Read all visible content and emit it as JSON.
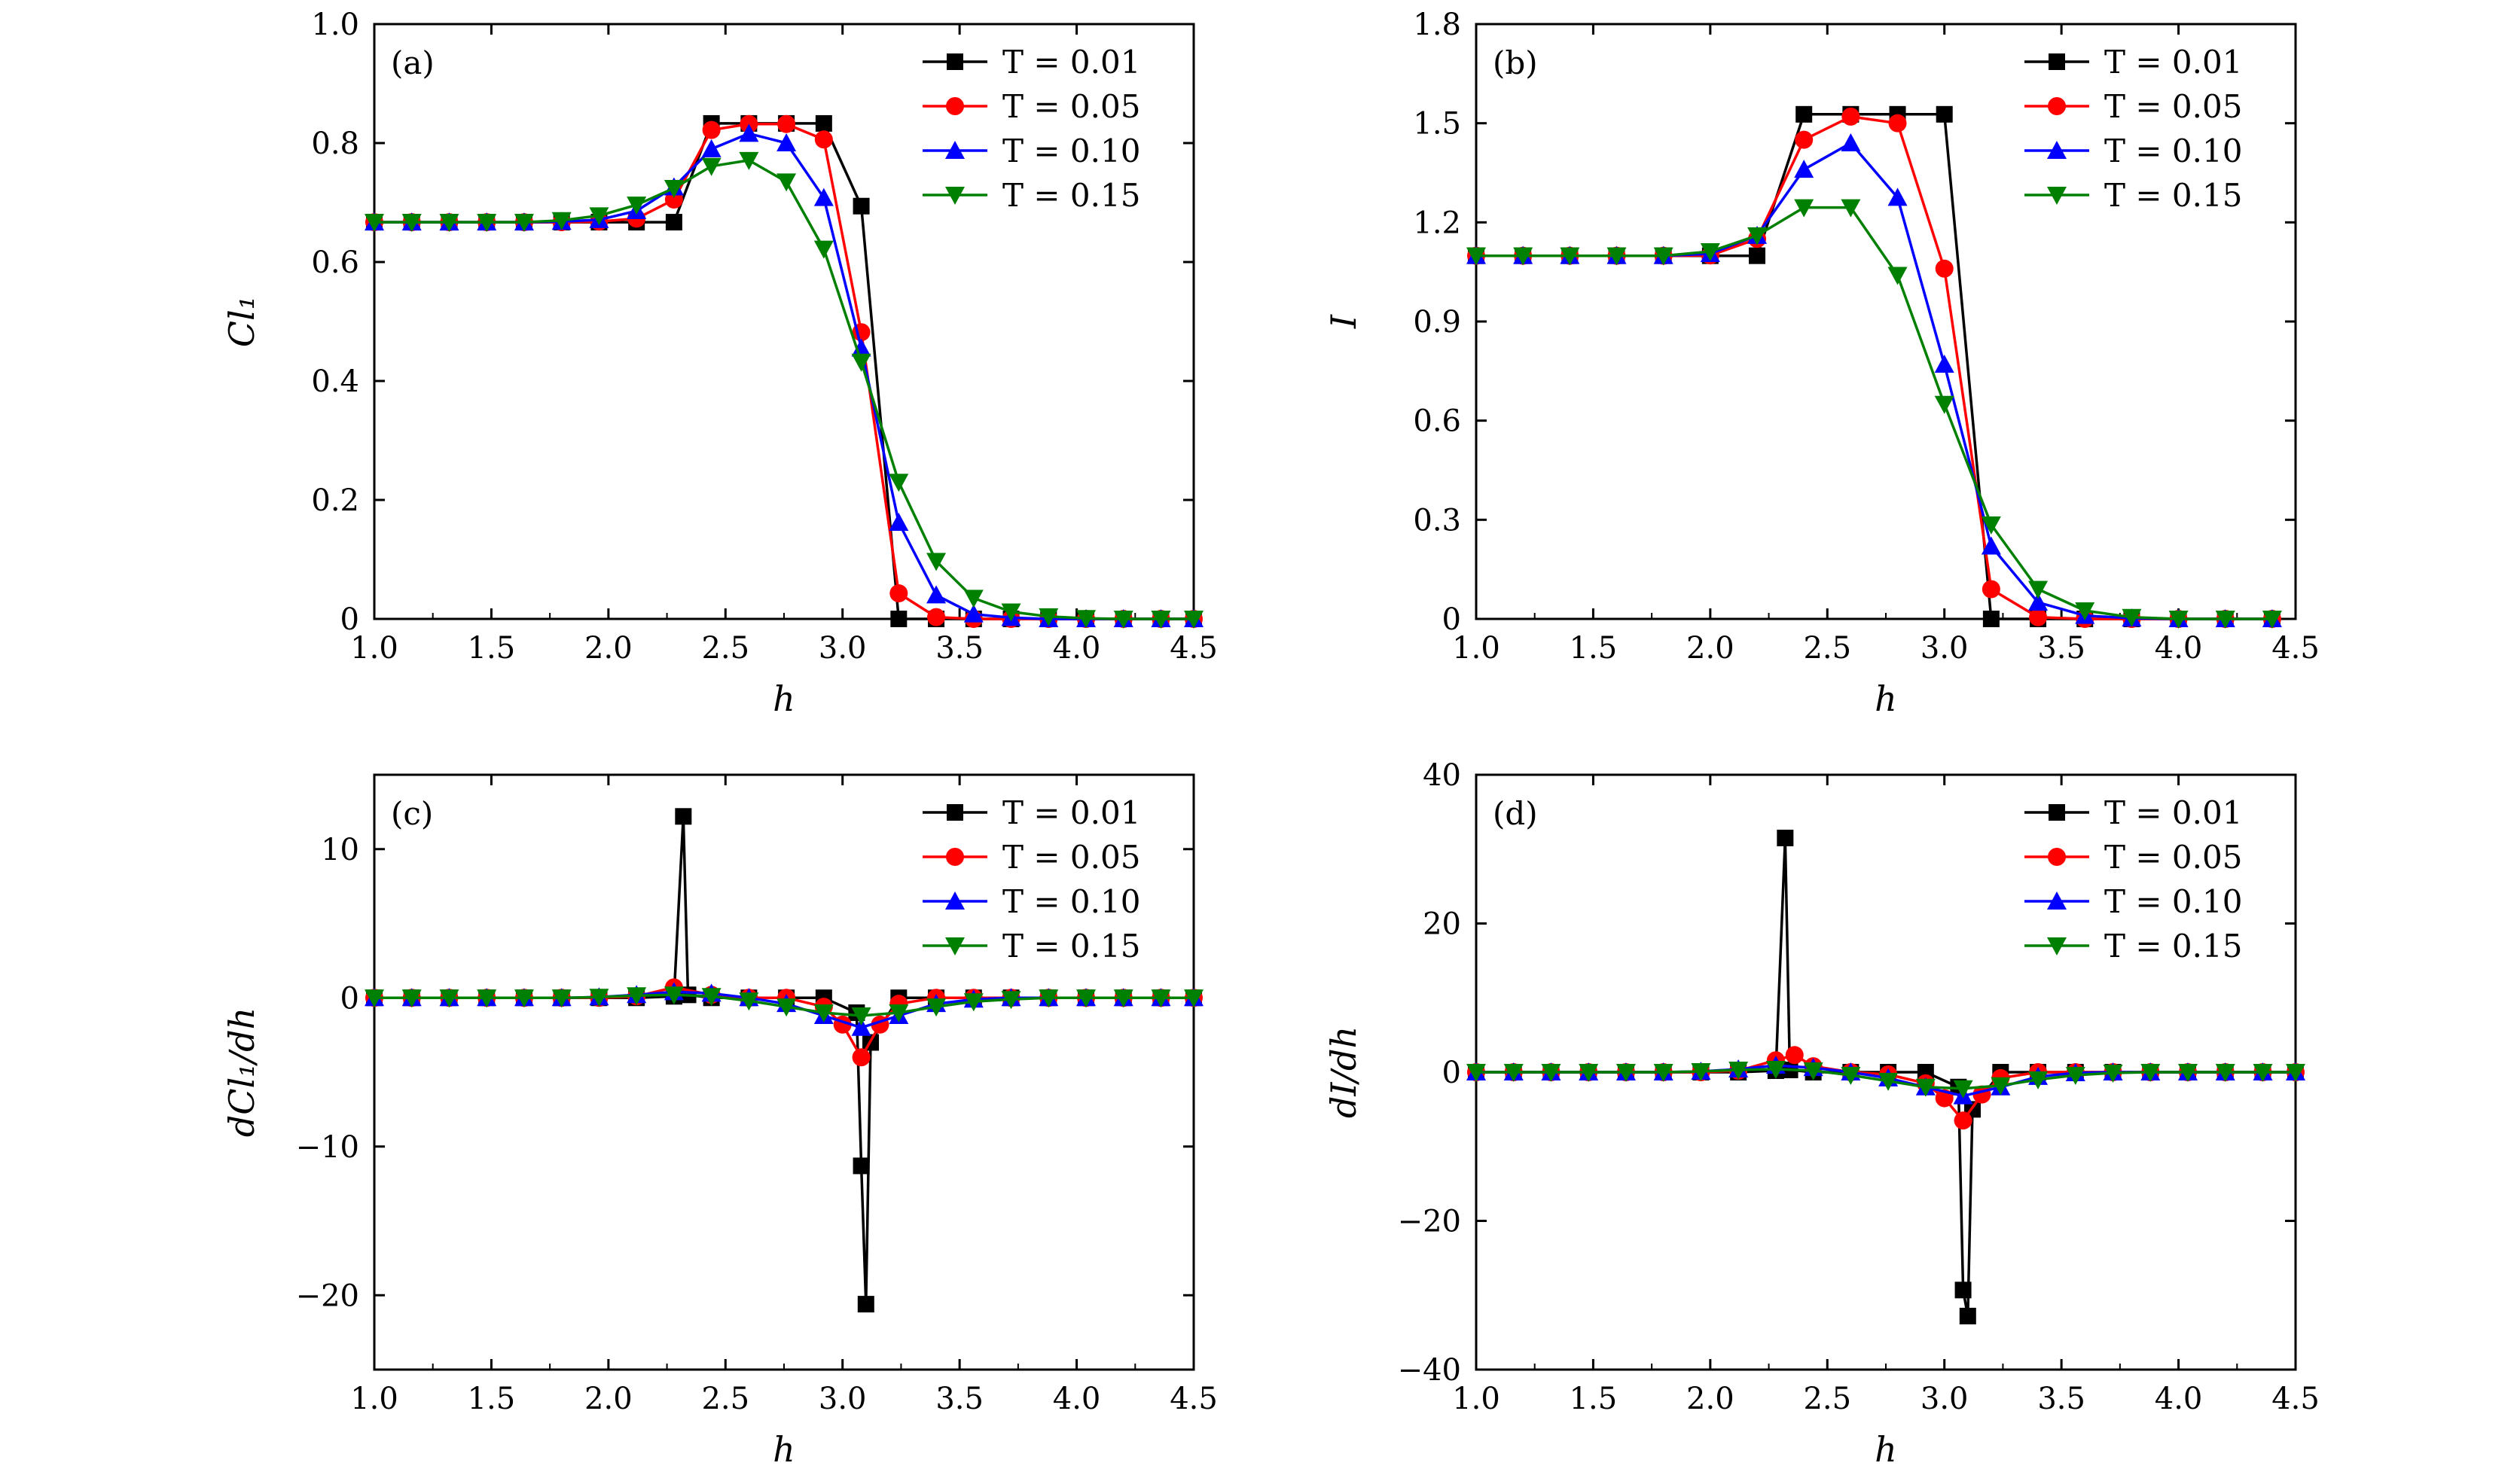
{
  "series_legend": [
    "T = 0.01",
    "T = 0.05",
    "T = 0.10",
    "T = 0.15"
  ],
  "series_colors": [
    "#000000",
    "#ff0000",
    "#0000ff",
    "#008000"
  ],
  "series_markers": [
    "square",
    "circle",
    "triangle-up",
    "triangle-down"
  ],
  "chart_data": [
    {
      "type": "line",
      "panel_label": "(a)",
      "xlabel": "h",
      "ylabel": "Cl₁",
      "xlim": [
        1.0,
        4.5
      ],
      "ylim": [
        0,
        1.0
      ],
      "xticks": [
        "1.0",
        "1.5",
        "2.0",
        "2.5",
        "3.0",
        "3.5",
        "4.0",
        "4.5"
      ],
      "yticks": [
        "0",
        "0.2",
        "0.4",
        "0.6",
        "0.8",
        "1.0"
      ],
      "legend_position": "top-right",
      "series": [
        {
          "name": "T = 0.01",
          "x": [
            1.0,
            1.16,
            1.32,
            1.48,
            1.64,
            1.8,
            1.96,
            2.12,
            2.28,
            2.44,
            2.6,
            2.76,
            2.92,
            3.08,
            3.24,
            3.4,
            3.56,
            3.72,
            3.88,
            4.04,
            4.2,
            4.36,
            4.5
          ],
          "y": [
            0.667,
            0.667,
            0.667,
            0.667,
            0.667,
            0.667,
            0.667,
            0.667,
            0.667,
            0.833,
            0.833,
            0.833,
            0.833,
            0.694,
            0.0,
            0.0,
            0.0,
            0.0,
            0.0,
            0.0,
            0.0,
            0.0,
            0.0
          ]
        },
        {
          "name": "T = 0.05",
          "x": [
            1.0,
            1.16,
            1.32,
            1.48,
            1.64,
            1.8,
            1.96,
            2.12,
            2.28,
            2.44,
            2.6,
            2.76,
            2.92,
            3.08,
            3.24,
            3.4,
            3.56,
            3.72,
            3.88,
            4.04,
            4.2,
            4.36,
            4.5
          ],
          "y": [
            0.667,
            0.667,
            0.667,
            0.667,
            0.667,
            0.667,
            0.668,
            0.673,
            0.705,
            0.822,
            0.832,
            0.832,
            0.806,
            0.482,
            0.043,
            0.003,
            0.0,
            0.0,
            0.0,
            0.0,
            0.0,
            0.0,
            0.0
          ]
        },
        {
          "name": "T = 0.10",
          "x": [
            1.0,
            1.16,
            1.32,
            1.48,
            1.64,
            1.8,
            1.96,
            2.12,
            2.28,
            2.44,
            2.6,
            2.76,
            2.92,
            3.08,
            3.24,
            3.4,
            3.56,
            3.72,
            3.88,
            4.04,
            4.2,
            4.36,
            4.5
          ],
          "y": [
            0.667,
            0.667,
            0.667,
            0.667,
            0.667,
            0.668,
            0.671,
            0.686,
            0.726,
            0.79,
            0.816,
            0.8,
            0.708,
            0.455,
            0.162,
            0.04,
            0.008,
            0.002,
            0.0,
            0.0,
            0.0,
            0.0,
            0.0
          ]
        },
        {
          "name": "T = 0.15",
          "x": [
            1.0,
            1.16,
            1.32,
            1.48,
            1.64,
            1.8,
            1.96,
            2.12,
            2.28,
            2.44,
            2.6,
            2.76,
            2.92,
            3.08,
            3.24,
            3.4,
            3.56,
            3.72,
            3.88,
            4.04,
            4.2,
            4.36,
            4.5
          ],
          "y": [
            0.667,
            0.667,
            0.667,
            0.667,
            0.667,
            0.67,
            0.678,
            0.696,
            0.724,
            0.761,
            0.771,
            0.735,
            0.622,
            0.432,
            0.23,
            0.097,
            0.035,
            0.012,
            0.004,
            0.001,
            0.0,
            0.0,
            0.0
          ]
        }
      ]
    },
    {
      "type": "line",
      "panel_label": "(b)",
      "xlabel": "h",
      "ylabel": "I",
      "xlim": [
        1.0,
        4.5
      ],
      "ylim": [
        0,
        1.8
      ],
      "xticks": [
        "1.0",
        "1.5",
        "2.0",
        "2.5",
        "3.0",
        "3.5",
        "4.0",
        "4.5"
      ],
      "yticks": [
        "0",
        "0.3",
        "0.6",
        "0.9",
        "1.2",
        "1.5",
        "1.8"
      ],
      "legend_position": "top-right",
      "series": [
        {
          "name": "T = 0.01",
          "x": [
            1.0,
            1.2,
            1.4,
            1.6,
            1.8,
            2.0,
            2.2,
            2.4,
            2.6,
            2.8,
            3.0,
            3.2,
            3.4,
            3.6,
            3.8,
            4.0,
            4.2,
            4.4
          ],
          "y": [
            1.099,
            1.099,
            1.099,
            1.099,
            1.099,
            1.099,
            1.099,
            1.527,
            1.527,
            1.527,
            1.527,
            0.0,
            0.0,
            0.0,
            0.0,
            0.0,
            0.0,
            0.0
          ]
        },
        {
          "name": "T = 0.05",
          "x": [
            1.0,
            1.2,
            1.4,
            1.6,
            1.8,
            2.0,
            2.2,
            2.4,
            2.6,
            2.8,
            3.0,
            3.2,
            3.4,
            3.6,
            3.8,
            4.0,
            4.2,
            4.4
          ],
          "y": [
            1.099,
            1.099,
            1.099,
            1.099,
            1.099,
            1.1,
            1.15,
            1.45,
            1.52,
            1.5,
            1.06,
            0.09,
            0.005,
            0.0,
            0.0,
            0.0,
            0.0,
            0.0
          ]
        },
        {
          "name": "T = 0.10",
          "x": [
            1.0,
            1.2,
            1.4,
            1.6,
            1.8,
            2.0,
            2.2,
            2.4,
            2.6,
            2.8,
            3.0,
            3.2,
            3.4,
            3.6,
            3.8,
            4.0,
            4.2,
            4.4
          ],
          "y": [
            1.099,
            1.099,
            1.099,
            1.099,
            1.099,
            1.105,
            1.16,
            1.36,
            1.44,
            1.275,
            0.77,
            0.22,
            0.05,
            0.01,
            0.002,
            0.0,
            0.0,
            0.0
          ]
        },
        {
          "name": "T = 0.15",
          "x": [
            1.0,
            1.2,
            1.4,
            1.6,
            1.8,
            2.0,
            2.2,
            2.4,
            2.6,
            2.8,
            3.0,
            3.2,
            3.4,
            3.6,
            3.8,
            4.0,
            4.2,
            4.4
          ],
          "y": [
            1.099,
            1.099,
            1.099,
            1.099,
            1.099,
            1.112,
            1.16,
            1.245,
            1.245,
            1.04,
            0.65,
            0.285,
            0.09,
            0.025,
            0.005,
            0.0,
            0.0,
            0.0
          ]
        }
      ]
    },
    {
      "type": "line",
      "panel_label": "(c)",
      "xlabel": "h",
      "ylabel": "dCl₁/dh",
      "xlim": [
        1.0,
        4.5
      ],
      "ylim": [
        -25,
        15
      ],
      "xticks": [
        "1.0",
        "1.5",
        "2.0",
        "2.5",
        "3.0",
        "3.5",
        "4.0",
        "4.5"
      ],
      "yticks": [
        "−20",
        "−10",
        "0",
        "10"
      ],
      "ytick_values": [
        -20,
        -10,
        0,
        10
      ],
      "legend_position": "top-right",
      "series": [
        {
          "name": "T = 0.01",
          "x": [
            1.0,
            1.16,
            1.32,
            1.48,
            1.64,
            1.8,
            1.96,
            2.12,
            2.28,
            2.32,
            2.34,
            2.44,
            2.6,
            2.76,
            2.92,
            3.06,
            3.08,
            3.1,
            3.12,
            3.24,
            3.4,
            3.56,
            3.72,
            3.88,
            4.04,
            4.2,
            4.36,
            4.5
          ],
          "y": [
            0,
            0,
            0,
            0,
            0,
            0,
            0,
            0,
            0.1,
            12.2,
            0.2,
            0,
            0,
            0,
            0,
            -1.0,
            -11.3,
            -20.6,
            -3.0,
            0,
            0,
            0,
            0,
            0,
            0,
            0,
            0,
            0
          ]
        },
        {
          "name": "T = 0.05",
          "x": [
            1.0,
            1.16,
            1.32,
            1.48,
            1.64,
            1.8,
            1.96,
            2.12,
            2.28,
            2.44,
            2.6,
            2.76,
            2.92,
            3.0,
            3.08,
            3.16,
            3.24,
            3.4,
            3.56,
            3.72,
            3.88,
            4.04,
            4.2,
            4.36,
            4.5
          ],
          "y": [
            0,
            0,
            0,
            0,
            0,
            0,
            0,
            0.1,
            0.7,
            0.2,
            0,
            0,
            -0.6,
            -1.8,
            -4.0,
            -1.8,
            -0.4,
            0,
            0,
            0,
            0,
            0,
            0,
            0,
            0
          ]
        },
        {
          "name": "T = 0.10",
          "x": [
            1.0,
            1.16,
            1.32,
            1.48,
            1.64,
            1.8,
            1.96,
            2.12,
            2.28,
            2.44,
            2.6,
            2.76,
            2.92,
            3.08,
            3.24,
            3.4,
            3.56,
            3.72,
            3.88,
            4.04,
            4.2,
            4.36,
            4.5
          ],
          "y": [
            0,
            0,
            0,
            0,
            0,
            0,
            0.05,
            0.2,
            0.4,
            0.3,
            0,
            -0.4,
            -1.2,
            -2.0,
            -1.2,
            -0.4,
            -0.1,
            0,
            0,
            0,
            0,
            0,
            0
          ]
        },
        {
          "name": "T = 0.15",
          "x": [
            1.0,
            1.16,
            1.32,
            1.48,
            1.64,
            1.8,
            1.96,
            2.12,
            2.28,
            2.44,
            2.6,
            2.76,
            2.92,
            3.08,
            3.24,
            3.4,
            3.56,
            3.72,
            3.88,
            4.04,
            4.2,
            4.36,
            4.5
          ],
          "y": [
            0,
            0,
            0,
            0,
            0,
            0,
            0.05,
            0.15,
            0.2,
            0.1,
            -0.2,
            -0.6,
            -1.0,
            -1.2,
            -1.0,
            -0.6,
            -0.25,
            -0.1,
            0,
            0,
            0,
            0,
            0
          ]
        }
      ]
    },
    {
      "type": "line",
      "panel_label": "(d)",
      "xlabel": "h",
      "ylabel": "dI/dh",
      "xlim": [
        1.0,
        4.5
      ],
      "ylim": [
        -40,
        40
      ],
      "xticks": [
        "1.0",
        "1.5",
        "2.0",
        "2.5",
        "3.0",
        "3.5",
        "4.0",
        "4.5"
      ],
      "yticks": [
        "−40",
        "−20",
        "0",
        "20",
        "40"
      ],
      "ytick_values": [
        -40,
        -20,
        0,
        20,
        40
      ],
      "legend_position": "top-right",
      "series": [
        {
          "name": "T = 0.01",
          "x": [
            1.0,
            1.16,
            1.32,
            1.48,
            1.64,
            1.8,
            1.96,
            2.12,
            2.28,
            2.32,
            2.34,
            2.44,
            2.6,
            2.76,
            2.92,
            3.06,
            3.08,
            3.1,
            3.12,
            3.24,
            3.4,
            3.56,
            3.72,
            3.88,
            4.04,
            4.2,
            4.36,
            4.5
          ],
          "y": [
            0,
            0,
            0,
            0,
            0,
            0,
            0,
            0,
            0.2,
            31.5,
            0.3,
            0,
            0,
            0,
            0,
            -2.0,
            -29.3,
            -32.8,
            -5.0,
            0,
            0,
            0,
            0,
            0,
            0,
            0,
            0,
            0
          ]
        },
        {
          "name": "T = 0.05",
          "x": [
            1.0,
            1.16,
            1.32,
            1.48,
            1.64,
            1.8,
            1.96,
            2.12,
            2.28,
            2.36,
            2.44,
            2.6,
            2.76,
            2.92,
            3.0,
            3.08,
            3.16,
            3.24,
            3.4,
            3.56,
            3.72,
            3.88,
            4.04,
            4.2,
            4.36,
            4.5
          ],
          "y": [
            0,
            0,
            0,
            0,
            0,
            0,
            0,
            0.2,
            1.6,
            2.3,
            0.8,
            0,
            -0.3,
            -1.5,
            -3.5,
            -6.5,
            -3.0,
            -0.8,
            0,
            0,
            0,
            0,
            0,
            0,
            0,
            0
          ]
        },
        {
          "name": "T = 0.10",
          "x": [
            1.0,
            1.16,
            1.32,
            1.48,
            1.64,
            1.8,
            1.96,
            2.12,
            2.28,
            2.44,
            2.6,
            2.76,
            2.92,
            3.08,
            3.24,
            3.4,
            3.56,
            3.72,
            3.88,
            4.04,
            4.2,
            4.36,
            4.5
          ],
          "y": [
            0,
            0,
            0,
            0,
            0,
            0,
            0.1,
            0.4,
            0.9,
            0.6,
            0,
            -0.8,
            -2.0,
            -3.2,
            -2.0,
            -0.6,
            -0.1,
            0,
            0,
            0,
            0,
            0,
            0
          ]
        },
        {
          "name": "T = 0.15",
          "x": [
            1.0,
            1.16,
            1.32,
            1.48,
            1.64,
            1.8,
            1.96,
            2.12,
            2.28,
            2.44,
            2.6,
            2.76,
            2.92,
            3.08,
            3.24,
            3.4,
            3.56,
            3.72,
            3.88,
            4.04,
            4.2,
            4.36,
            4.5
          ],
          "y": [
            0,
            0,
            0,
            0,
            0,
            0,
            0.1,
            0.3,
            0.4,
            0.2,
            -0.4,
            -1.2,
            -2.0,
            -2.2,
            -1.8,
            -1.0,
            -0.4,
            -0.1,
            0,
            0,
            0,
            0,
            0
          ]
        }
      ]
    }
  ]
}
